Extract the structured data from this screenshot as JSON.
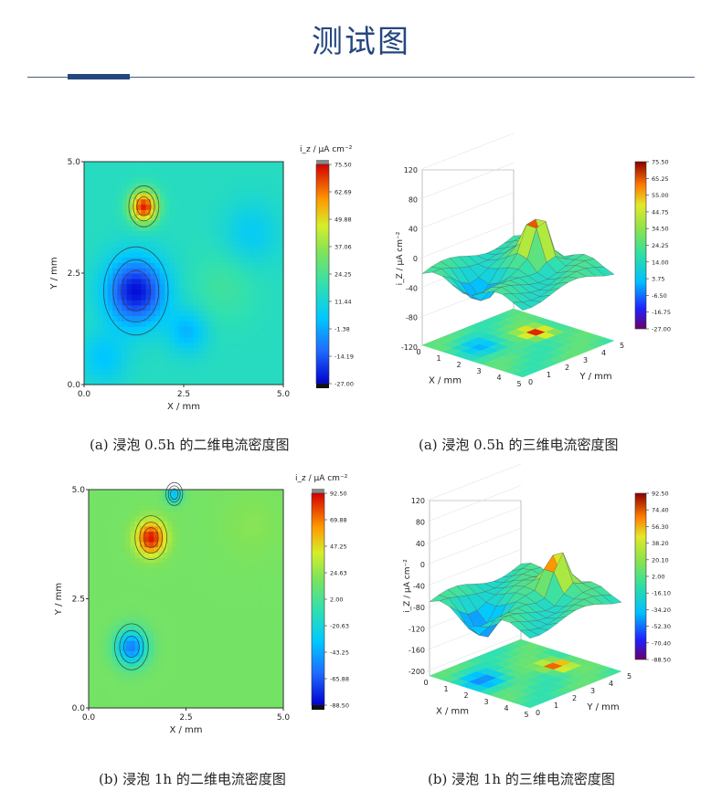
{
  "page": {
    "title": "测试图"
  },
  "chart_data": [
    {
      "type": "heatmap",
      "title": "",
      "caption": "(a)  浸泡 0.5h 的二维电流密度图",
      "xlabel": "X / mm",
      "ylabel": "Y / mm",
      "xlim": [
        0,
        5
      ],
      "ylim": [
        0,
        5
      ],
      "xticks": [
        "0.0",
        "2.5",
        "5.0"
      ],
      "yticks": [
        "0.0",
        "2.5",
        "5.0"
      ],
      "colorbar": {
        "label": "i_z / μA cm⁻²",
        "ticks": [
          "75.50",
          "62.69",
          "49.88",
          "37.06",
          "24.25",
          "11.44",
          "-1.38",
          "-14.19",
          "-27.00"
        ],
        "range": [
          -27.0,
          75.5
        ]
      },
      "features": [
        {
          "kind": "peak",
          "x": 1.5,
          "y": 4.0,
          "value": 75.5
        },
        {
          "kind": "trough",
          "x": 1.3,
          "y": 2.1,
          "value": -27.0
        }
      ]
    },
    {
      "type": "surface3d",
      "title": "",
      "caption": "(a)  浸泡 0.5h 的三维电流密度图",
      "xlabel": "X / mm",
      "ylabel": "Y / mm",
      "zlabel": "i_Z / μA cm⁻²",
      "zticks": [
        "120",
        "80",
        "40",
        "0",
        "-40",
        "-80",
        "-120"
      ],
      "xticks": [
        "0",
        "1",
        "2",
        "3",
        "4",
        "5"
      ],
      "yticks": [
        "0",
        "1",
        "2",
        "3",
        "4",
        "5"
      ],
      "colorbar": {
        "ticks": [
          "75.50",
          "65.25",
          "55.00",
          "44.75",
          "34.50",
          "24.25",
          "14.00",
          "3.75",
          "-6.50",
          "-16.75",
          "-27.00"
        ],
        "range": [
          -27.0,
          75.5
        ]
      }
    },
    {
      "type": "heatmap",
      "title": "",
      "caption": "(b)  浸泡 1h 的二维电流密度图",
      "xlabel": "X / mm",
      "ylabel": "Y / mm",
      "xlim": [
        0,
        5
      ],
      "ylim": [
        0,
        5
      ],
      "xticks": [
        "0.0",
        "2.5",
        "5.0"
      ],
      "yticks": [
        "0.0",
        "2.5",
        "5.0"
      ],
      "colorbar": {
        "label": "i_z / μA cm⁻²",
        "ticks": [
          "92.50",
          "69.88",
          "47.25",
          "24.63",
          "2.00",
          "-20.63",
          "-43.25",
          "-65.88",
          "-88.50"
        ],
        "range": [
          -88.5,
          92.5
        ]
      },
      "features": [
        {
          "kind": "peak",
          "x": 1.6,
          "y": 3.9,
          "value": 92.5
        },
        {
          "kind": "trough",
          "x": 1.1,
          "y": 1.4,
          "value": -88.5
        }
      ]
    },
    {
      "type": "surface3d",
      "title": "",
      "caption": "(b)  浸泡 1h 的三维电流密度图",
      "xlabel": "X / mm",
      "ylabel": "Y / mm",
      "zlabel": "i_Z / μA cm⁻²",
      "zticks": [
        "120",
        "80",
        "40",
        "0",
        "-40",
        "-80",
        "-120",
        "-160",
        "-200"
      ],
      "xticks": [
        "0",
        "1",
        "2",
        "3",
        "4",
        "5"
      ],
      "yticks": [
        "0",
        "1",
        "2",
        "3",
        "4",
        "5"
      ],
      "colorbar": {
        "ticks": [
          "92.50",
          "74.40",
          "56.30",
          "38.20",
          "20.10",
          "2.00",
          "-16.10",
          "-34.20",
          "-52.30",
          "-70.40",
          "-88.50"
        ],
        "range": [
          -88.5,
          92.5
        ]
      }
    }
  ]
}
